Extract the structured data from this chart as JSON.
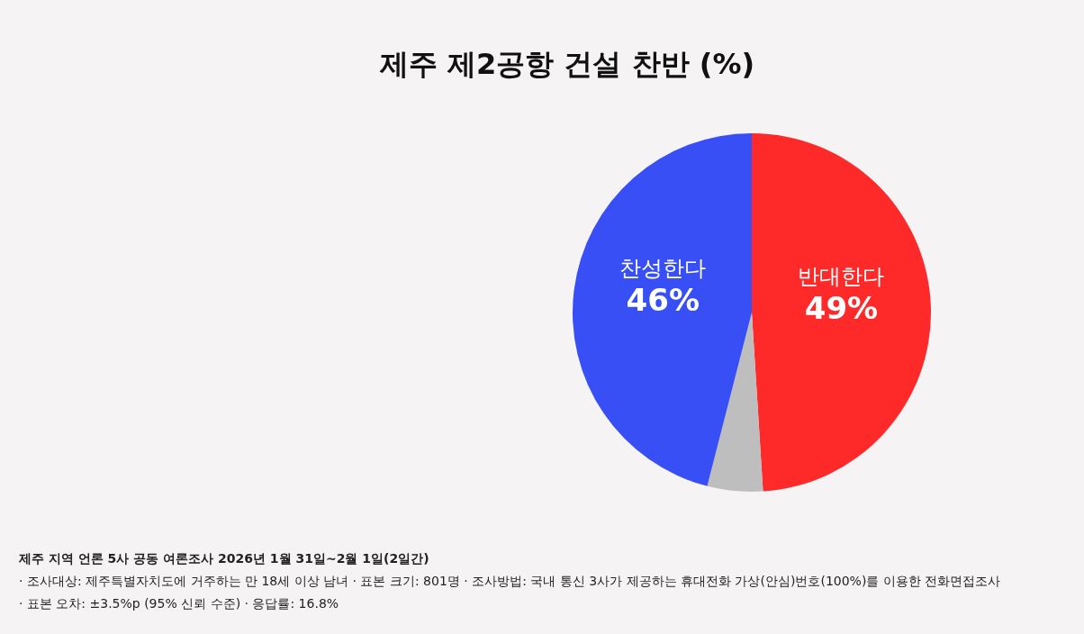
{
  "chart_data": {
    "type": "pie",
    "title": "제주 제2공항 건설 찬반 (%)",
    "categories": [
      "반대한다",
      null,
      "찬성한다"
    ],
    "values": [
      49,
      5,
      46
    ],
    "colors": [
      "#fe2a2a",
      "#bebebe",
      "#374ff5"
    ],
    "value_labels": [
      "49%",
      null,
      "46%"
    ],
    "annotations": [
      "제주 지역 언론 5사 공동 여론조사  2026년 1월 31일~2월 1일(2일간)",
      "· 조사대상: 제주특별자치도에 거주하는 만 18세 이상 남녀 · 표본 크기: 801명 · 조사방법: 국내 통신 3사가 제공하는 휴대전화 가상(안심)번호(100%)를 이용한 전화면접조사",
      "· 표본 오차: ±3.5%p (95% 신뢰 수준) · 응답률: 16.8%"
    ]
  }
}
